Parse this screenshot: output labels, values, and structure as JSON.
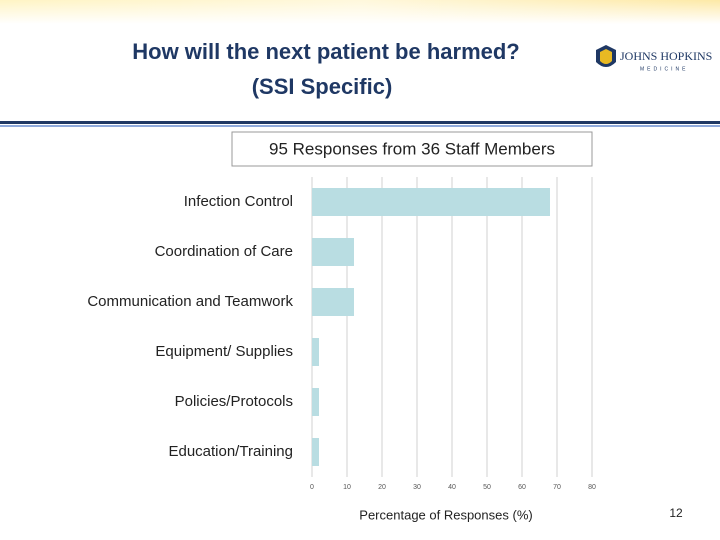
{
  "slide": {
    "title": [
      "How will the next patient be harmed?",
      "(SSI Specific)"
    ],
    "page_number": 12
  },
  "logo": {
    "name": "JOHNS HOPKINS",
    "sub": "MEDICINE"
  },
  "chart_data": {
    "type": "bar",
    "orientation": "horizontal",
    "subtitle": "95 Responses from 36 Staff Members",
    "x_label": "Percentage of Responses (%)",
    "categories": [
      "Infection Control",
      "Coordination of Care",
      "Communication and Teamwork",
      "Equipment/ Supplies",
      "Policies/Protocols",
      "Education/Training"
    ],
    "values": [
      68,
      12,
      12,
      2,
      2,
      2
    ],
    "color": "#b9dde2",
    "xlim": [
      0,
      80
    ],
    "xticks": [
      0,
      10,
      20,
      30,
      40,
      50,
      60,
      70,
      80
    ],
    "grid": true
  }
}
